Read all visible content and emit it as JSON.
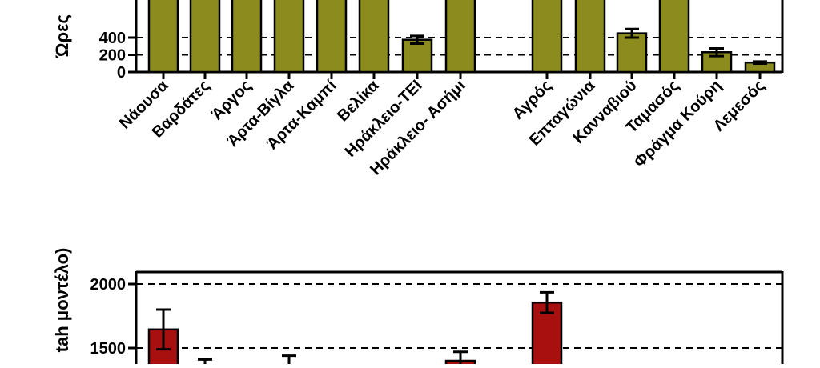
{
  "chart_data": [
    {
      "type": "bar",
      "ylabel": "Ώρες",
      "ylim": [
        0,
        1000
      ],
      "ytick_values": [
        0,
        200,
        400
      ],
      "ytick_labels": [
        "0",
        "200",
        "400"
      ],
      "grid": "horizontal dashed",
      "bar_color": "#8c8c1e",
      "categories": [
        "Νάουσα",
        "Βαρδάτες",
        "Άργος",
        "Άρτα-Βίγλα",
        "Άρτα-Καμπί",
        "Βελίκα",
        "Ηράκλειο-ΤΕΙ",
        "Ηράκλειο- Ασήμι",
        "",
        "Αγρός",
        "Επταγώνια",
        "Κανναβιού",
        "Ταμασός",
        "Φράγμα Κούρη",
        "Λεμεσός"
      ],
      "values": [
        900,
        900,
        900,
        900,
        900,
        900,
        375,
        900,
        null,
        900,
        900,
        450,
        900,
        230,
        110
      ],
      "errors": [
        null,
        null,
        null,
        null,
        null,
        null,
        45,
        null,
        null,
        null,
        null,
        50,
        null,
        45,
        12
      ]
    },
    {
      "type": "bar",
      "ylabel": "tah μοντέλο)",
      "ylim": [
        0,
        2100
      ],
      "ytick_values": [
        1500,
        2000
      ],
      "ytick_labels": [
        "1500",
        "2000"
      ],
      "grid": "horizontal dashed",
      "bar_color": "#a80f0f",
      "categories": [
        "Νάουσα",
        "Βαρδάτες",
        "Άργος",
        "Άρτα-Βίγλα",
        "Άρτα-Καμπί",
        "Βελίκα",
        "Ηράκλειο-ΤΕΙ",
        "Ηράκλειο- Ασήμι",
        "",
        "Αγρός",
        "Επταγώνια",
        "Κανναβιού",
        "Ταμασός",
        "Φράγμα Κούρη",
        "Λεμεσός"
      ],
      "values": [
        1645,
        1350,
        null,
        1350,
        null,
        null,
        null,
        1400,
        null,
        1855,
        null,
        null,
        null,
        null,
        null
      ],
      "errors": [
        155,
        60,
        null,
        90,
        null,
        null,
        null,
        70,
        null,
        80,
        null,
        null,
        null,
        null,
        null
      ]
    }
  ]
}
